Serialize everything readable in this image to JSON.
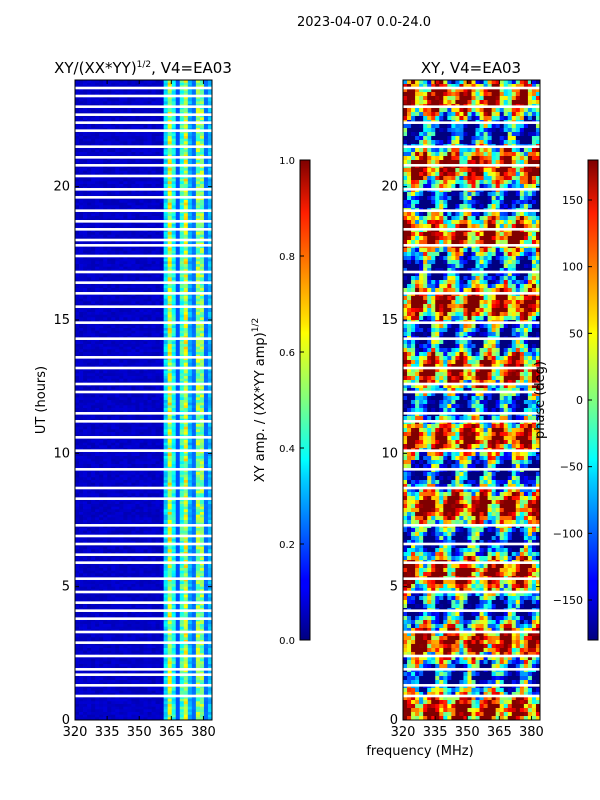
{
  "figure": {
    "suptitle": "2023-04-07 0.0-24.0",
    "xlabel": "frequency (MHz)"
  },
  "chart_data": [
    {
      "type": "heatmap",
      "title_main": "XY/(XX*YY)",
      "title_exp": "1/2",
      "title_tail": ", V4=EA03",
      "ylabel": "UT (hours)",
      "xlim": [
        320,
        384
      ],
      "ylim": [
        0,
        24
      ],
      "xticks": [
        320,
        335,
        350,
        365,
        380
      ],
      "yticks": [
        0,
        5,
        10,
        15,
        20
      ],
      "colorbar": {
        "label_main": "XY amp. / (XX*YY amp)",
        "label_exp": "1/2",
        "range": [
          0.0,
          1.0
        ],
        "ticks": [
          "0.0",
          "0.2",
          "0.4",
          "0.6",
          "0.8",
          "1.0"
        ],
        "colormap": "jet"
      },
      "description_values": {
        "low_band_mhz": [
          320,
          361
        ],
        "low_band_level": 0.07,
        "high_band_mhz": [
          361,
          384
        ],
        "high_band_level_range": [
          0.2,
          0.7
        ],
        "flagged_row_hours": [
          0.9,
          1.3,
          1.7,
          1.9,
          2.4,
          2.9,
          3.3,
          3.8,
          4.1,
          4.4,
          4.8,
          5.3,
          5.9,
          6.2,
          6.6,
          6.9,
          7.3,
          8.3,
          8.7,
          9.4,
          10.1,
          10.6,
          11.2,
          11.5,
          12.3,
          12.6,
          13.2,
          13.6,
          14.3,
          14.9,
          15.5,
          16.0,
          16.4,
          16.8,
          17.4,
          17.8,
          18.0,
          18.4,
          18.7,
          19.1,
          19.6,
          19.9,
          20.4,
          20.8,
          21.1,
          21.5,
          22.1,
          22.4,
          22.7,
          23.0,
          23.4,
          23.7
        ]
      }
    },
    {
      "type": "heatmap",
      "title": "XY, V4=EA03",
      "xlim": [
        320,
        384
      ],
      "ylim": [
        0,
        24
      ],
      "xticks": [
        320,
        335,
        350,
        365,
        380
      ],
      "yticks": [
        0,
        5,
        10,
        15,
        20
      ],
      "colorbar": {
        "label": "phase (deg)",
        "range": [
          -180,
          180
        ],
        "ticks": [
          "−150",
          "−100",
          "−50",
          "0",
          "50",
          "100",
          "150"
        ],
        "tick_values": [
          -150,
          -100,
          -50,
          0,
          50,
          100,
          150
        ],
        "colormap": "jet"
      },
      "description_values": {
        "phase_range_deg": [
          -180,
          180
        ],
        "flagged_row_hours": [
          0.9,
          1.3,
          1.9,
          2.4,
          3.3,
          4.1,
          4.8,
          5.3,
          5.9,
          6.6,
          7.3,
          8.7,
          9.4,
          10.1,
          11.2,
          11.5,
          12.3,
          12.6,
          13.2,
          14.3,
          14.9,
          16.0,
          16.8,
          17.8,
          18.4,
          19.1,
          19.9,
          20.8,
          21.5,
          22.4,
          23.0,
          23.7
        ]
      }
    }
  ]
}
